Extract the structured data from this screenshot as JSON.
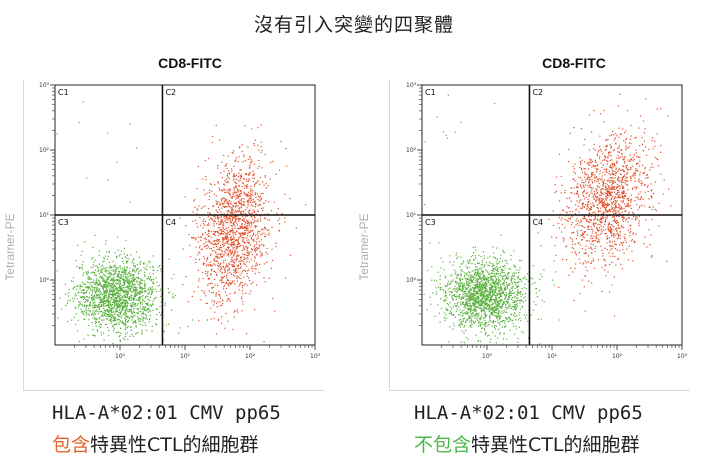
{
  "title": "沒有引入突變的四聚體",
  "colors": {
    "negative": "#58b03c",
    "positive": "#e0502a",
    "highlight_orange": "#e8632b",
    "highlight_green": "#4cb848"
  },
  "chart_data": [
    {
      "type": "scatter",
      "xlabel": "CD8-FITC",
      "ylabel": "Tetramer-PE",
      "x_scale": "log",
      "y_scale": "log",
      "xlim": [
        0.1,
        1000
      ],
      "ylim": [
        0.1,
        1000
      ],
      "x_ticks": [
        "10⁰",
        "10¹",
        "10²",
        "10³"
      ],
      "y_ticks": [
        "10⁰",
        "10¹",
        "10²",
        "10³"
      ],
      "gate": {
        "x": 4.5,
        "y": 10
      },
      "quadrants": [
        "C1",
        "C2",
        "C3",
        "C4"
      ],
      "series": [
        {
          "color": "green",
          "center": [
            0.9,
            0.6
          ],
          "spread_log": [
            0.32,
            0.28
          ],
          "count": 1700
        },
        {
          "color": "red",
          "center": [
            55,
            6
          ],
          "spread_log": [
            0.28,
            0.55
          ],
          "count": 1500
        }
      ],
      "caption_line1": "HLA-A*02:01 CMV pp65",
      "caption_line2_highlight": "包含",
      "caption_line2_rest": "特異性CTL的細胞群"
    },
    {
      "type": "scatter",
      "xlabel": "CD8-FITC",
      "ylabel": "Tetramer-PE",
      "x_scale": "log",
      "y_scale": "log",
      "xlim": [
        0.1,
        1000
      ],
      "ylim": [
        0.1,
        1000
      ],
      "x_ticks": [
        "10⁰",
        "10¹",
        "10²",
        "10³"
      ],
      "y_ticks": [
        "10⁰",
        "10¹",
        "10²",
        "10³"
      ],
      "gate": {
        "x": 4.5,
        "y": 10
      },
      "quadrants": [
        "C1",
        "C2",
        "C3",
        "C4"
      ],
      "series": [
        {
          "color": "green",
          "center": [
            0.9,
            0.6
          ],
          "spread_log": [
            0.32,
            0.28
          ],
          "count": 1700
        },
        {
          "color": "red",
          "center": [
            70,
            18
          ],
          "spread_log": [
            0.32,
            0.5
          ],
          "count": 1400
        }
      ],
      "caption_line1": "HLA-A*02:01 CMV pp65",
      "caption_line2_highlight": "不包含",
      "caption_line2_rest": "特異性CTL的細胞群"
    }
  ]
}
